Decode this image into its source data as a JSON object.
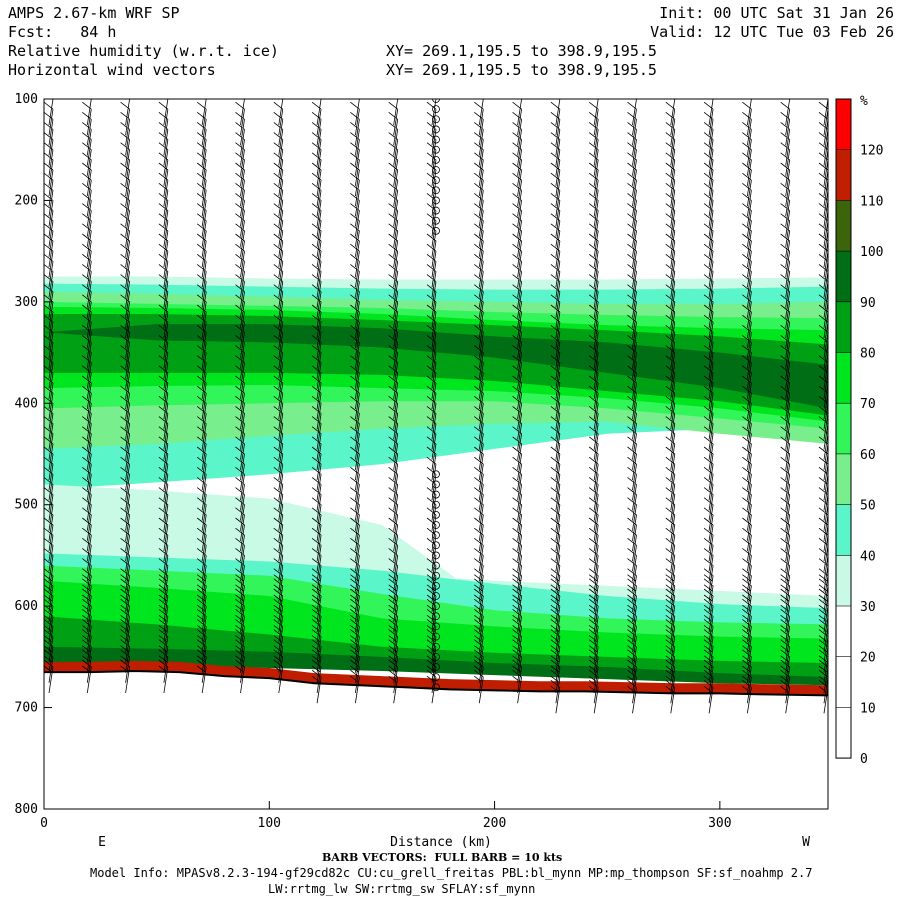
{
  "header": {
    "model": "AMPS 2.67-km WRF SP",
    "init": "Init: 00 UTC Sat 31 Jan 26",
    "fcst": "Fcst:   84 h",
    "valid": "Valid: 12 UTC Tue 03 Feb 26",
    "field1": "Relative humidity (w.r.t. ice)",
    "xy1": "XY= 269.1,195.5 to 398.9,195.5",
    "field2": "Horizontal wind vectors",
    "xy2": "XY= 269.1,195.5 to 398.9,195.5"
  },
  "footer": {
    "barb": "BARB VECTORS:  FULL BARB = 10 kts",
    "model_info": "Model Info: MPASv8.2.3-194-gf29cd82c CU:cu_grell_freitas PBL:bl_mynn MP:mp_thompson SF:sf_noahmp 2.7",
    "model_info2": "LW:rrtmg_lw SW:rrtmg_sw SFLAY:sf_mynn"
  },
  "chart_data": {
    "type": "heatmap",
    "xlabel": "Distance (km)",
    "x_ticks": [
      "0",
      "100",
      "200",
      "300"
    ],
    "x_range": [
      0,
      348
    ],
    "x_ends": {
      "left": "E",
      "right": "W"
    },
    "y_ticks": [
      "100",
      "200",
      "300",
      "400",
      "500",
      "600",
      "700",
      "800"
    ],
    "y_range": [
      100,
      800
    ],
    "y_axis_label_visible": false,
    "colorbar": {
      "unit": "%",
      "labels": [
        "120",
        "110",
        "100",
        "90",
        "80",
        "70",
        "60",
        "50",
        "40",
        "30",
        "20",
        "10",
        "0"
      ],
      "bins": [
        {
          "from": 120,
          "to": 130,
          "color": "#ff0000"
        },
        {
          "from": 110,
          "to": 120,
          "color": "#c01e00"
        },
        {
          "from": 100,
          "to": 110,
          "color": "#3c640a"
        },
        {
          "from": 90,
          "to": 100,
          "color": "#006e14"
        },
        {
          "from": 80,
          "to": 90,
          "color": "#00a014"
        },
        {
          "from": 70,
          "to": 80,
          "color": "#00e61e"
        },
        {
          "from": 60,
          "to": 70,
          "color": "#32f55a"
        },
        {
          "from": 50,
          "to": 60,
          "color": "#78ee8c"
        },
        {
          "from": 40,
          "to": 50,
          "color": "#5af5c8"
        },
        {
          "from": 30,
          "to": 40,
          "color": "#c8fae6"
        },
        {
          "from": 20,
          "to": 30,
          "color": "#ffffff"
        },
        {
          "from": 10,
          "to": 20,
          "color": "#ffffff"
        },
        {
          "from": 0,
          "to": 10,
          "color": "#ffffff"
        }
      ]
    },
    "rh_layers": [
      {
        "rh": 35,
        "color": "#c8fae6",
        "top_p": [
          275,
          275,
          277,
          278,
          278,
          278,
          277,
          276
        ],
        "bottom_p": [
          300,
          298,
          296,
          294,
          292,
          292,
          292,
          292
        ]
      },
      {
        "rh": 45,
        "color": "#5af5c8",
        "top_p": [
          282,
          283,
          285,
          287,
          288,
          288,
          287,
          285
        ],
        "bottom_p": [
          485,
          478,
          470,
          460,
          445,
          430,
          425,
          428
        ]
      },
      {
        "rh": 55,
        "color": "#78ee8c",
        "top_p": [
          290,
          292,
          295,
          298,
          300,
          302,
          302,
          300
        ],
        "bottom_p": [
          445,
          440,
          432,
          425,
          420,
          418,
          430,
          440
        ]
      },
      {
        "rh": 65,
        "color": "#32f55a",
        "top_p": [
          300,
          302,
          304,
          306,
          310,
          313,
          315,
          316
        ],
        "bottom_p": [
          405,
          402,
          400,
          398,
          398,
          405,
          415,
          425
        ]
      },
      {
        "rh": 75,
        "color": "#00e61e",
        "top_p": [
          305,
          306,
          308,
          312,
          318,
          323,
          326,
          328
        ],
        "bottom_p": [
          385,
          383,
          382,
          385,
          388,
          395,
          405,
          418
        ]
      },
      {
        "rh": 85,
        "color": "#00a014",
        "top_p": [
          312,
          312,
          314,
          318,
          323,
          328,
          334,
          342
        ],
        "bottom_p": [
          370,
          370,
          370,
          372,
          378,
          388,
          398,
          412
        ]
      },
      {
        "rh": 95,
        "color": "#006e14",
        "top_p": [
          330,
          322,
          322,
          326,
          334,
          340,
          350,
          362
        ],
        "bottom_p": [
          330,
          338,
          340,
          345,
          355,
          370,
          385,
          405
        ]
      },
      {
        "rh": 35,
        "color": "#c8fae6",
        "top_p": [
          480,
          486,
          494,
          520,
          600,
          608,
          608,
          610
        ],
        "bottom_p": [
          560,
          560,
          562,
          568,
          575,
          580,
          585,
          590
        ]
      },
      {
        "rh": 45,
        "color": "#5af5c8",
        "top_p": [
          548,
          552,
          556,
          565,
          578,
          590,
          598,
          602
        ],
        "bottom_p": [
          620,
          622,
          626,
          630,
          636,
          640,
          642,
          644
        ]
      },
      {
        "rh": 65,
        "color": "#32f55a",
        "top_p": [
          560,
          565,
          570,
          588,
          604,
          612,
          616,
          618
        ],
        "bottom_p": [
          635,
          638,
          642,
          648,
          652,
          656,
          660,
          662
        ]
      },
      {
        "rh": 75,
        "color": "#00e61e",
        "top_p": [
          575,
          582,
          590,
          612,
          620,
          626,
          630,
          632
        ],
        "bottom_p": [
          640,
          644,
          648,
          654,
          658,
          662,
          665,
          668
        ]
      },
      {
        "rh": 85,
        "color": "#00a014",
        "top_p": [
          610,
          618,
          628,
          640,
          646,
          650,
          654,
          656
        ],
        "bottom_p": [
          650,
          652,
          655,
          658,
          662,
          666,
          670,
          672
        ]
      },
      {
        "rh": 95,
        "color": "#006e14",
        "top_p": [
          640,
          642,
          645,
          650,
          656,
          660,
          666,
          670
        ],
        "bottom_p": [
          656,
          658,
          661,
          664,
          668,
          672,
          676,
          678
        ]
      }
    ],
    "rh_x": [
      0,
      50,
      100,
      150,
      200,
      250,
      300,
      348
    ],
    "surface": {
      "x": [
        0,
        20,
        40,
        60,
        80,
        100,
        120,
        140,
        160,
        180,
        200,
        220,
        240,
        260,
        280,
        300,
        320,
        348
      ],
      "p": [
        665,
        665,
        664,
        665,
        669,
        671,
        676,
        678,
        680,
        682,
        683,
        684,
        684,
        685,
        686,
        686,
        687,
        688
      ],
      "color": "#c01e00"
    },
    "calm_column": {
      "x": 174,
      "p_ranges": [
        [
          100,
          230
        ],
        [
          470,
          682
        ]
      ]
    },
    "wind_barbs": {
      "x": [
        0,
        17,
        34,
        51,
        68,
        85,
        102,
        119,
        136,
        153,
        170,
        191,
        208,
        225,
        242,
        259,
        276,
        293,
        310,
        327,
        344
      ],
      "p_start": 100,
      "p_step": 10
    }
  }
}
